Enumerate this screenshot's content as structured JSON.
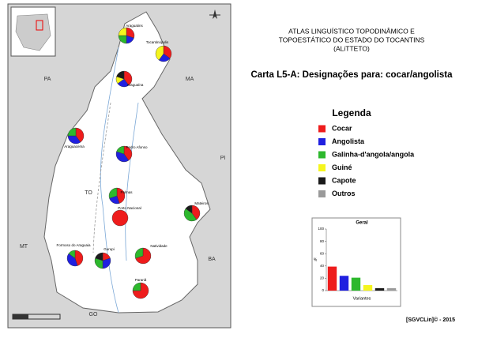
{
  "header": {
    "title_lines": [
      "ATLAS LINGUÍSTICO TOPODINÂMICO E",
      "TOPOESTÁTICO DO ESTADO DO TOCANTINS",
      "(ALiTTETO)"
    ],
    "subtitle": "Carta L5-A: Designações para: cocar/angolista"
  },
  "legend": {
    "title": "Legenda",
    "items": [
      {
        "name": "Cocar",
        "color": "#ee1c1c"
      },
      {
        "name": "Angolista",
        "color": "#2020e0"
      },
      {
        "name": "Galinha-d'angola/angola",
        "color": "#2db82d"
      },
      {
        "name": "Guiné",
        "color": "#f5f51e"
      },
      {
        "name": "Capote",
        "color": "#1a1a1a"
      },
      {
        "name": "Outros",
        "color": "#9a9a9a"
      }
    ]
  },
  "map": {
    "states": [
      "PA",
      "MA",
      "PI",
      "TO",
      "MT",
      "BA",
      "GO"
    ],
    "cities": [
      {
        "name": "Araguatins",
        "shares": [
          30,
          20,
          25,
          25,
          0,
          0
        ]
      },
      {
        "name": "Tocantinópolis",
        "shares": [
          35,
          25,
          0,
          40,
          0,
          0
        ]
      },
      {
        "name": "Araguaína",
        "shares": [
          40,
          25,
          0,
          15,
          20,
          0
        ]
      },
      {
        "name": "Araguacema",
        "shares": [
          40,
          35,
          25,
          0,
          0,
          0
        ]
      },
      {
        "name": "Pedro Afonso",
        "shares": [
          40,
          40,
          20,
          0,
          0,
          0
        ]
      },
      {
        "name": "Palmas",
        "shares": [
          45,
          25,
          30,
          0,
          0,
          0
        ]
      },
      {
        "name": "Porto Nacional",
        "shares": [
          100,
          0,
          0,
          0,
          0,
          0
        ]
      },
      {
        "name": "Mateiros",
        "shares": [
          40,
          0,
          45,
          0,
          15,
          0
        ]
      },
      {
        "name": "Formoso do Araguaia",
        "shares": [
          45,
          40,
          15,
          0,
          0,
          0
        ]
      },
      {
        "name": "Gurupi",
        "shares": [
          20,
          30,
          30,
          0,
          20,
          0
        ]
      },
      {
        "name": "Natividade",
        "shares": [
          70,
          0,
          30,
          0,
          0,
          0
        ]
      },
      {
        "name": "Paranã",
        "shares": [
          75,
          0,
          25,
          0,
          0,
          0
        ]
      }
    ]
  },
  "chart_data": {
    "type": "bar",
    "title": "Geral",
    "xlabel": "Variantes",
    "ylabel": "%",
    "values": [
      39,
      24,
      21,
      9,
      4,
      4
    ],
    "colors": [
      "#ee1c1c",
      "#2020e0",
      "#2db82d",
      "#f5f51e",
      "#1a1a1a",
      "#9a9a9a"
    ],
    "ylim": [
      0,
      100
    ],
    "yticks": [
      0,
      20,
      40,
      60,
      80,
      100
    ]
  },
  "footer": "[SGVCLin]© - 2015"
}
